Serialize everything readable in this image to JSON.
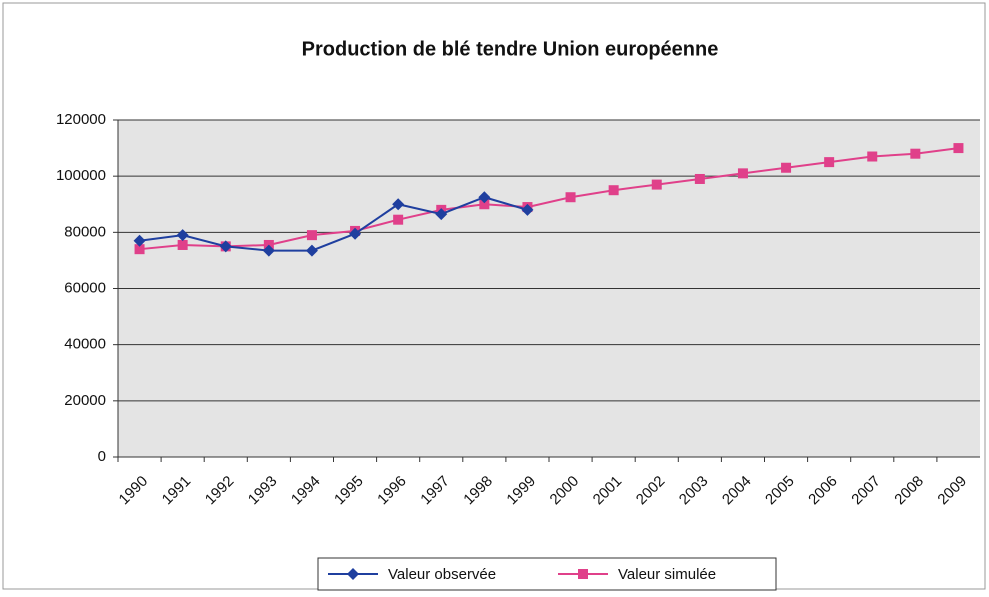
{
  "chart_data": {
    "type": "line",
    "title": "Production de blé tendre Union européenne",
    "categories": [
      "1990",
      "1991",
      "1992",
      "1993",
      "1994",
      "1995",
      "1996",
      "1997",
      "1998",
      "1999",
      "2000",
      "2001",
      "2002",
      "2003",
      "2004",
      "2005",
      "2006",
      "2007",
      "2008",
      "2009"
    ],
    "series": [
      {
        "name": "Valeur observée",
        "color": "#1f3f9f",
        "marker": "diamond",
        "values": [
          77000,
          79000,
          75000,
          73500,
          73500,
          79500,
          90000,
          86500,
          92500,
          88000,
          null,
          null,
          null,
          null,
          null,
          null,
          null,
          null,
          null,
          null
        ]
      },
      {
        "name": "Valeur simulée",
        "color": "#e0408a",
        "marker": "square",
        "values": [
          74000,
          75500,
          75000,
          75500,
          79000,
          80500,
          84500,
          88000,
          90000,
          89000,
          92500,
          95000,
          97000,
          99000,
          101000,
          103000,
          105000,
          107000,
          108000,
          110000
        ]
      }
    ],
    "ylim": [
      0,
      120000
    ],
    "yticks": [
      0,
      20000,
      40000,
      60000,
      80000,
      100000,
      120000
    ],
    "grid": true,
    "legend": "bottom"
  }
}
